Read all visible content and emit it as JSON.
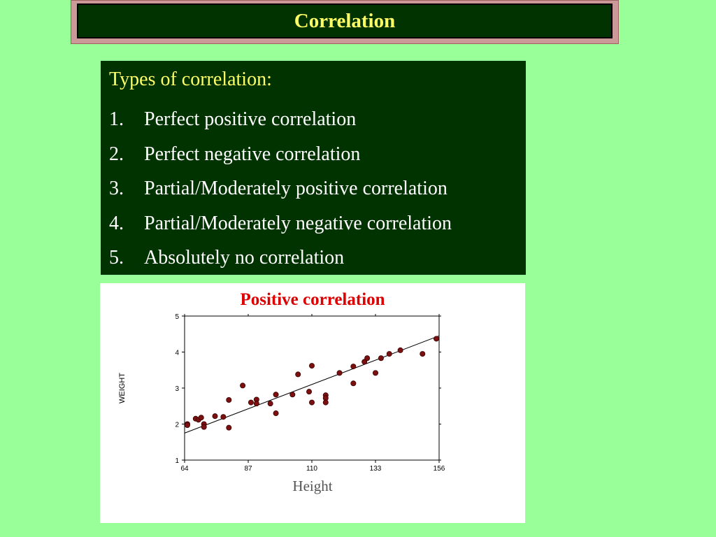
{
  "slide": {
    "title": "Correlation"
  },
  "types": {
    "heading": "Types of correlation:",
    "items": [
      {
        "num": "1.",
        "text": "Perfect positive correlation"
      },
      {
        "num": "2.",
        "text": "Perfect negative correlation"
      },
      {
        "num": "3.",
        "text": "Partial/Moderately positive correlation"
      },
      {
        "num": "4.",
        "text": "Partial/Moderately negative correlation"
      },
      {
        "num": "5.",
        "text": "Absolutely no correlation"
      }
    ]
  },
  "colors": {
    "background": "#99ff99",
    "box": "#003300",
    "title_text": "#ffff66",
    "chart_title": "#dd0000",
    "point": "#7a1010"
  },
  "chart_data": {
    "type": "scatter",
    "title": "Positive correlation",
    "xlabel": "Height",
    "ylabel": "WEIGHT",
    "xlim": [
      64,
      156
    ],
    "ylim": [
      1,
      5
    ],
    "xticks": [
      64,
      87,
      110,
      133,
      156
    ],
    "yticks": [
      1,
      2,
      3,
      4,
      5
    ],
    "grid": false,
    "trendline": {
      "x": [
        64,
        156
      ],
      "y": [
        1.75,
        4.45
      ]
    },
    "points": [
      {
        "x": 65,
        "y": 2.0
      },
      {
        "x": 65,
        "y": 1.97
      },
      {
        "x": 68,
        "y": 2.15
      },
      {
        "x": 69,
        "y": 2.12
      },
      {
        "x": 70,
        "y": 2.18
      },
      {
        "x": 71,
        "y": 2.0
      },
      {
        "x": 71,
        "y": 1.92
      },
      {
        "x": 75,
        "y": 2.22
      },
      {
        "x": 78,
        "y": 2.2
      },
      {
        "x": 80,
        "y": 2.67
      },
      {
        "x": 80,
        "y": 1.9
      },
      {
        "x": 85,
        "y": 3.07
      },
      {
        "x": 88,
        "y": 2.6
      },
      {
        "x": 90,
        "y": 2.68
      },
      {
        "x": 90,
        "y": 2.57
      },
      {
        "x": 95,
        "y": 2.57
      },
      {
        "x": 97,
        "y": 2.3
      },
      {
        "x": 97,
        "y": 2.82
      },
      {
        "x": 103,
        "y": 2.82
      },
      {
        "x": 105,
        "y": 3.38
      },
      {
        "x": 109,
        "y": 2.9
      },
      {
        "x": 110,
        "y": 3.62
      },
      {
        "x": 110,
        "y": 2.6
      },
      {
        "x": 115,
        "y": 2.8
      },
      {
        "x": 115,
        "y": 2.72
      },
      {
        "x": 115,
        "y": 2.6
      },
      {
        "x": 120,
        "y": 3.42
      },
      {
        "x": 125,
        "y": 3.13
      },
      {
        "x": 125,
        "y": 3.6
      },
      {
        "x": 129,
        "y": 3.73
      },
      {
        "x": 130,
        "y": 3.83
      },
      {
        "x": 133,
        "y": 3.42
      },
      {
        "x": 135,
        "y": 3.83
      },
      {
        "x": 138,
        "y": 3.95
      },
      {
        "x": 142,
        "y": 4.05
      },
      {
        "x": 150,
        "y": 3.95
      },
      {
        "x": 155,
        "y": 4.37
      }
    ]
  }
}
